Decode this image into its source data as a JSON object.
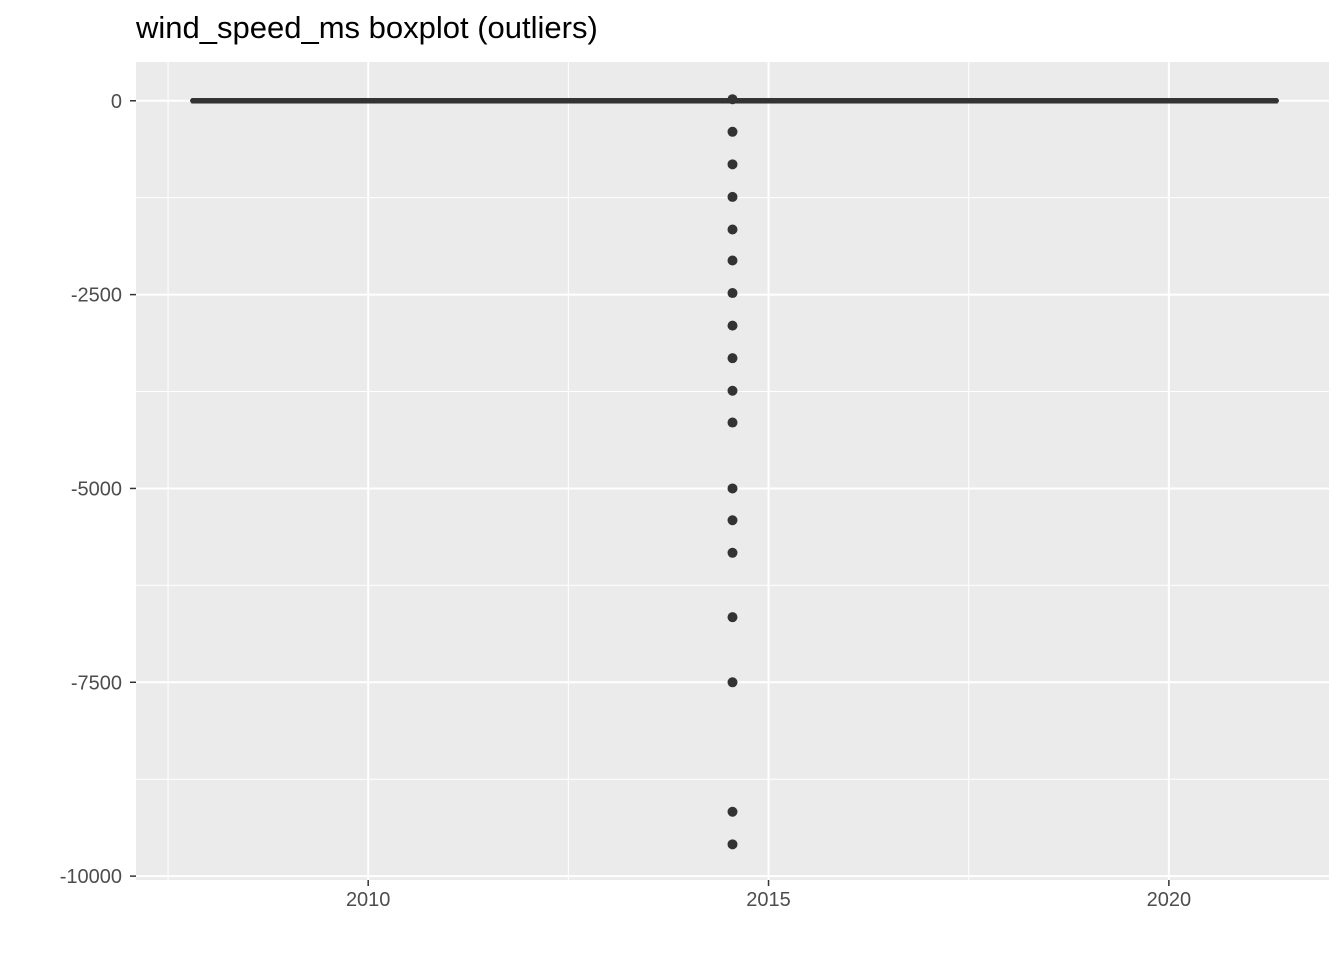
{
  "chart_data": {
    "type": "boxplot",
    "title": "wind_speed_ms boxplot (outliers)",
    "xlabel": "",
    "ylabel": "",
    "xlim": [
      2007.1,
      2022.0
    ],
    "ylim": [
      -10050,
      500
    ],
    "x_ticks": [
      2010,
      2015,
      2020
    ],
    "y_ticks": [
      0,
      -2500,
      -5000,
      -7500,
      -10000
    ],
    "x_tick_labels": [
      "2010",
      "2015",
      "2020"
    ],
    "y_tick_labels": [
      "0",
      "-2500",
      "-5000",
      "-7500",
      "-10000"
    ],
    "grid": true,
    "box": {
      "x_min": 2007.8,
      "x_max": 2021.35,
      "median": 0,
      "q1": 0,
      "q3": 0,
      "whisker_low": 0,
      "whisker_high": 0
    },
    "outliers": {
      "x": 2014.55,
      "values": [
        20,
        -400,
        -820,
        -1240,
        -1660,
        -2060,
        -2480,
        -2900,
        -3320,
        -3740,
        -4150,
        -5000,
        -5410,
        -5830,
        -6660,
        -7500,
        -9170,
        -9590
      ]
    },
    "colors": {
      "panel_background": "#ebebeb",
      "grid": "#ffffff",
      "marks": "#333333",
      "tick_label": "#4d4d4d"
    }
  }
}
